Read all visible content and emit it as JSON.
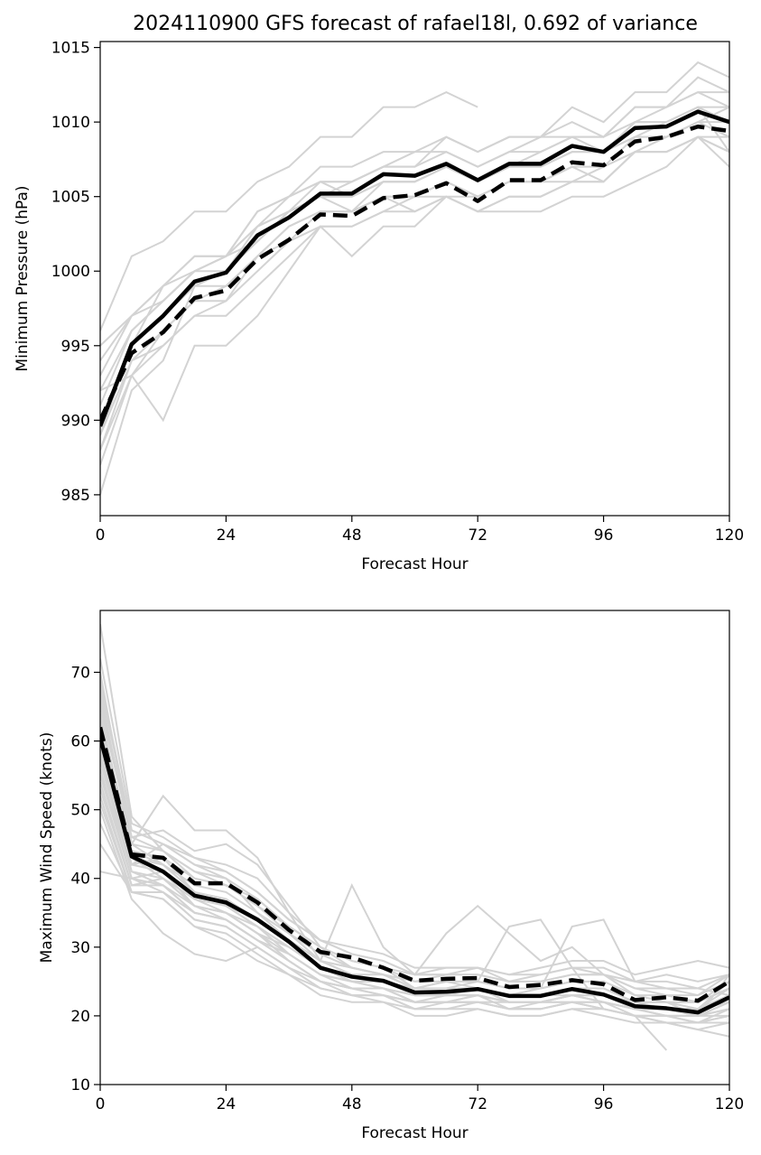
{
  "title": "2024110900 GFS forecast of rafael18l, 0.692 of variance",
  "chart_data": [
    {
      "type": "line",
      "xlabel": "Forecast Hour",
      "ylabel": "Minimum Pressure (hPa)",
      "xlim": [
        0,
        120
      ],
      "ylim": [
        983.6,
        1015.4
      ],
      "xticks": [
        0,
        24,
        48,
        72,
        96,
        120
      ],
      "yticks": [
        985,
        990,
        995,
        1000,
        1005,
        1010,
        1015
      ],
      "x": [
        0,
        6,
        12,
        18,
        24,
        30,
        36,
        42,
        48,
        54,
        60,
        66,
        72,
        78,
        84,
        90,
        96,
        102,
        108,
        114,
        120
      ],
      "series": [
        {
          "style": "mean",
          "values": [
            989.6,
            995.1,
            997.0,
            999.3,
            999.9,
            1002.4,
            1003.6,
            1005.2,
            1005.2,
            1006.5,
            1006.4,
            1007.2,
            1006.1,
            1007.2,
            1007.2,
            1008.4,
            1008.0,
            1009.6,
            1009.7,
            1010.7,
            1010.0
          ]
        },
        {
          "style": "control",
          "values": [
            990.0,
            994.5,
            995.9,
            998.2,
            998.7,
            1000.8,
            1002.1,
            1003.8,
            1003.7,
            1004.9,
            1005.1,
            1005.9,
            1004.7,
            1006.1,
            1006.1,
            1007.3,
            1007.1,
            1008.7,
            1009.0,
            1009.7,
            1009.4
          ]
        }
      ],
      "members": [
        [
          985,
          992,
          994,
          999,
          1000,
          1002,
          1004,
          1005,
          1004,
          1006,
          1006,
          1007,
          1006,
          1007,
          1007,
          1008,
          1008,
          1010,
          1010,
          1011,
          1010
        ],
        [
          996,
          1001,
          1002,
          1004,
          1004,
          1006,
          1007,
          1009,
          1009,
          1011,
          1011,
          1012,
          1011
        ],
        [
          992,
          993,
          990,
          995,
          995,
          997,
          1000,
          1003,
          1001,
          1003,
          1003,
          1005,
          1004,
          1005,
          1005,
          1006,
          1007,
          1008,
          1009,
          1010,
          1011
        ],
        [
          989,
          995,
          999,
          1001,
          1001,
          1004,
          1005,
          1006,
          1006,
          1007,
          1007,
          1008,
          1007,
          1008,
          1008,
          1009,
          1009,
          1011,
          1011,
          1013,
          1012
        ],
        [
          991,
          996,
          998,
          1000,
          1000,
          1002,
          1004,
          1005,
          1006,
          1007,
          1007,
          1009,
          1008,
          1009,
          1009,
          1011,
          1010,
          1012,
          1012,
          1014,
          1013
        ],
        [
          988,
          994,
          996,
          998,
          998,
          1001,
          1002,
          1004,
          1004,
          1005,
          1005,
          1006,
          1005,
          1006,
          1006,
          1007,
          1007,
          1009,
          1009,
          1010,
          1009
        ],
        [
          993,
          997,
          998,
          1000,
          1001,
          1003,
          1004,
          1006,
          1005,
          1006,
          1006,
          1007,
          1006,
          1007,
          1007,
          1008,
          1008,
          1009,
          1010,
          1011,
          1008
        ],
        [
          990,
          995,
          997,
          999,
          999,
          1001,
          1003,
          1004,
          1004,
          1005,
          1005,
          1006,
          1005,
          1006,
          1006,
          1007,
          1006,
          1008,
          1008,
          1009,
          1008
        ],
        [
          994,
          997,
          999,
          1001,
          1001,
          1004,
          1005,
          1007,
          1007,
          1008,
          1008,
          1009,
          1008,
          1009,
          1009,
          1010,
          1009,
          1011,
          1011,
          1012,
          1011
        ],
        [
          987,
          993,
          996,
          998,
          999,
          1001,
          1003,
          1004,
          1004,
          1005,
          1004,
          1005,
          1004,
          1004,
          1004,
          1005,
          1005,
          1006,
          1007,
          1009,
          1008
        ],
        [
          995,
          997,
          999,
          1000,
          1001,
          1003,
          1005,
          1006,
          1006,
          1007,
          1008,
          1008,
          1007,
          1008,
          1009,
          1009,
          1008,
          1010,
          1011,
          1012,
          1012
        ],
        [
          989,
          994,
          995,
          997,
          998,
          1000,
          1002,
          1003,
          1003,
          1004,
          1005,
          1005,
          1005,
          1006,
          1006,
          1006,
          1006,
          1008,
          1008,
          1009,
          1007
        ],
        [
          992,
          996,
          998,
          1000,
          1001,
          1002,
          1004,
          1005,
          1005,
          1006,
          1006,
          1007,
          1006,
          1007,
          1007,
          1008,
          1008,
          1009,
          1009,
          1010,
          1010
        ],
        [
          990,
          995,
          997,
          999,
          1000,
          1003,
          1004,
          1005,
          1005,
          1006,
          1006,
          1007,
          1006,
          1007,
          1008,
          1009,
          1009,
          1010,
          1010,
          1011,
          1011
        ],
        [
          988,
          993,
          995,
          997,
          997,
          999,
          1001,
          1003,
          1003,
          1004,
          1004,
          1005,
          1004,
          1005,
          1005,
          1006,
          1006,
          1008,
          1008,
          1009,
          1009
        ]
      ]
    },
    {
      "type": "line",
      "xlabel": "Forecast Hour",
      "ylabel": "Maximum Wind Speed (knots)",
      "xlim": [
        0,
        120
      ],
      "ylim": [
        10,
        79
      ],
      "xticks": [
        0,
        24,
        48,
        72,
        96,
        120
      ],
      "yticks": [
        10,
        20,
        30,
        40,
        50,
        60,
        70
      ],
      "x": [
        0,
        6,
        12,
        18,
        24,
        30,
        36,
        42,
        48,
        54,
        60,
        66,
        72,
        78,
        84,
        90,
        96,
        102,
        108,
        114,
        120
      ],
      "series": [
        {
          "style": "mean",
          "values": [
            60.5,
            43.2,
            41.0,
            37.5,
            36.5,
            34.0,
            30.8,
            27.0,
            25.7,
            25.1,
            23.4,
            23.5,
            23.9,
            22.9,
            22.9,
            23.9,
            23.1,
            21.4,
            21.1,
            20.5,
            22.7
          ]
        },
        {
          "style": "control",
          "values": [
            62.0,
            43.5,
            43.0,
            39.3,
            39.3,
            36.5,
            32.5,
            29.3,
            28.5,
            27.0,
            25.1,
            25.4,
            25.5,
            24.2,
            24.5,
            25.2,
            24.6,
            22.3,
            22.7,
            22.2,
            25.0
          ]
        }
      ],
      "members": [
        [
          41,
          40,
          38,
          35,
          34,
          31,
          28,
          25,
          24,
          24,
          22,
          22,
          23,
          21,
          21,
          22,
          21,
          20,
          19,
          18,
          17
        ],
        [
          77,
          49,
          44,
          41,
          39,
          37,
          33,
          30,
          27,
          26,
          24,
          24,
          24,
          23,
          23,
          24,
          23,
          22,
          21,
          21,
          24
        ],
        [
          70,
          45,
          52,
          47,
          47,
          43,
          35,
          28,
          39,
          30,
          26,
          32,
          36,
          32,
          28,
          30,
          26,
          23,
          22,
          20,
          26
        ],
        [
          55,
          42,
          45,
          42,
          40,
          35,
          31,
          28,
          26,
          26,
          24,
          24,
          25,
          33,
          34,
          27,
          21,
          20,
          15
        ],
        [
          65,
          46,
          47,
          44,
          45,
          42,
          36,
          30,
          28,
          27,
          24,
          25,
          24,
          23,
          24,
          33,
          34,
          25,
          25,
          24,
          23
        ],
        [
          58,
          41,
          39,
          36,
          35,
          32,
          30,
          27,
          26,
          25,
          23,
          23,
          24,
          22,
          22,
          23,
          23,
          21,
          21,
          20,
          21
        ],
        [
          62,
          44,
          42,
          38,
          37,
          34,
          31,
          28,
          27,
          26,
          24,
          24,
          24,
          23,
          23,
          24,
          24,
          22,
          22,
          22,
          24
        ],
        [
          52,
          38,
          37,
          33,
          31,
          28,
          26,
          24,
          23,
          22,
          21,
          21,
          22,
          21,
          21,
          22,
          22,
          20,
          20,
          19,
          20
        ],
        [
          68,
          47,
          45,
          43,
          42,
          40,
          35,
          31,
          29,
          28,
          26,
          27,
          27,
          26,
          26,
          27,
          27,
          25,
          26,
          25,
          26
        ],
        [
          50,
          37,
          32,
          29,
          28,
          30,
          27,
          25,
          23,
          23,
          22,
          22,
          22,
          21,
          22,
          23,
          22,
          21,
          20,
          20,
          22
        ],
        [
          60,
          43,
          40,
          37,
          36,
          33,
          30,
          27,
          25,
          25,
          23,
          23,
          23,
          22,
          22,
          23,
          23,
          21,
          21,
          20,
          22
        ],
        [
          72,
          48,
          46,
          43,
          41,
          38,
          34,
          31,
          30,
          29,
          27,
          27,
          27,
          26,
          27,
          28,
          28,
          26,
          27,
          28,
          27
        ],
        [
          56,
          40,
          41,
          36,
          35,
          32,
          28,
          25,
          24,
          23,
          22,
          22,
          22,
          22,
          22,
          22,
          21,
          20,
          20,
          20,
          20
        ],
        [
          59,
          42,
          43,
          38,
          36,
          33,
          29,
          26,
          25,
          24,
          23,
          23,
          23,
          22,
          22,
          23,
          22,
          21,
          21,
          21,
          23
        ],
        [
          63,
          45,
          42,
          39,
          38,
          35,
          32,
          28,
          27,
          26,
          24,
          25,
          25,
          24,
          24,
          25,
          25,
          23,
          22,
          21,
          25
        ],
        [
          54,
          39,
          40,
          36,
          34,
          31,
          28,
          25,
          24,
          23,
          22,
          22,
          22,
          21,
          21,
          22,
          21,
          20,
          19,
          19,
          19
        ],
        [
          66,
          46,
          44,
          40,
          39,
          36,
          33,
          30,
          28,
          27,
          25,
          26,
          26,
          25,
          25,
          26,
          26,
          24,
          24,
          23,
          26
        ],
        [
          48,
          38,
          38,
          34,
          33,
          30,
          27,
          24,
          23,
          23,
          21,
          21,
          21,
          20,
          20,
          21,
          21,
          20,
          20,
          19,
          21
        ],
        [
          61,
          43,
          42,
          38,
          36,
          34,
          31,
          28,
          26,
          25,
          24,
          24,
          24,
          23,
          23,
          24,
          24,
          22,
          22,
          22,
          24
        ],
        [
          57,
          41,
          40,
          36,
          35,
          32,
          29,
          26,
          25,
          24,
          23,
          23,
          23,
          22,
          22,
          23,
          22,
          21,
          21,
          20,
          22
        ],
        [
          64,
          44,
          43,
          40,
          39,
          36,
          32,
          29,
          27,
          26,
          25,
          25,
          25,
          24,
          24,
          25,
          25,
          23,
          23,
          22,
          25
        ],
        [
          53,
          39,
          39,
          35,
          34,
          31,
          28,
          25,
          24,
          24,
          22,
          22,
          23,
          22,
          22,
          22,
          22,
          21,
          20,
          20,
          21
        ],
        [
          67,
          45,
          44,
          41,
          40,
          37,
          33,
          30,
          28,
          27,
          26,
          26,
          26,
          25,
          25,
          26,
          26,
          24,
          23,
          23,
          25
        ],
        [
          45,
          38,
          37,
          33,
          32,
          29,
          26,
          23,
          22,
          22,
          20,
          20,
          21,
          20,
          20,
          21,
          20,
          19,
          19,
          18,
          19
        ],
        [
          58,
          42,
          41,
          37,
          35,
          33,
          30,
          27,
          25,
          25,
          23,
          23,
          24,
          23,
          23,
          23,
          23,
          22,
          21,
          21,
          23
        ],
        [
          51,
          38,
          38,
          34,
          33,
          30,
          27,
          24,
          23,
          23,
          21,
          22,
          22,
          21,
          21,
          22,
          21,
          20,
          20,
          19,
          20
        ],
        [
          69,
          47,
          45,
          42,
          41,
          38,
          34,
          31,
          29,
          28,
          26,
          26,
          27,
          25,
          26,
          27,
          26,
          25,
          24,
          24,
          26
        ],
        [
          55,
          40,
          39,
          35,
          34,
          31,
          29,
          26,
          24,
          24,
          22,
          23,
          23,
          22,
          22,
          23,
          22,
          21,
          21,
          20,
          21
        ],
        [
          60,
          43,
          42,
          38,
          37,
          34,
          31,
          28,
          26,
          25,
          24,
          24,
          24,
          23,
          23,
          24,
          23,
          22,
          22,
          21,
          22
        ]
      ]
    }
  ]
}
